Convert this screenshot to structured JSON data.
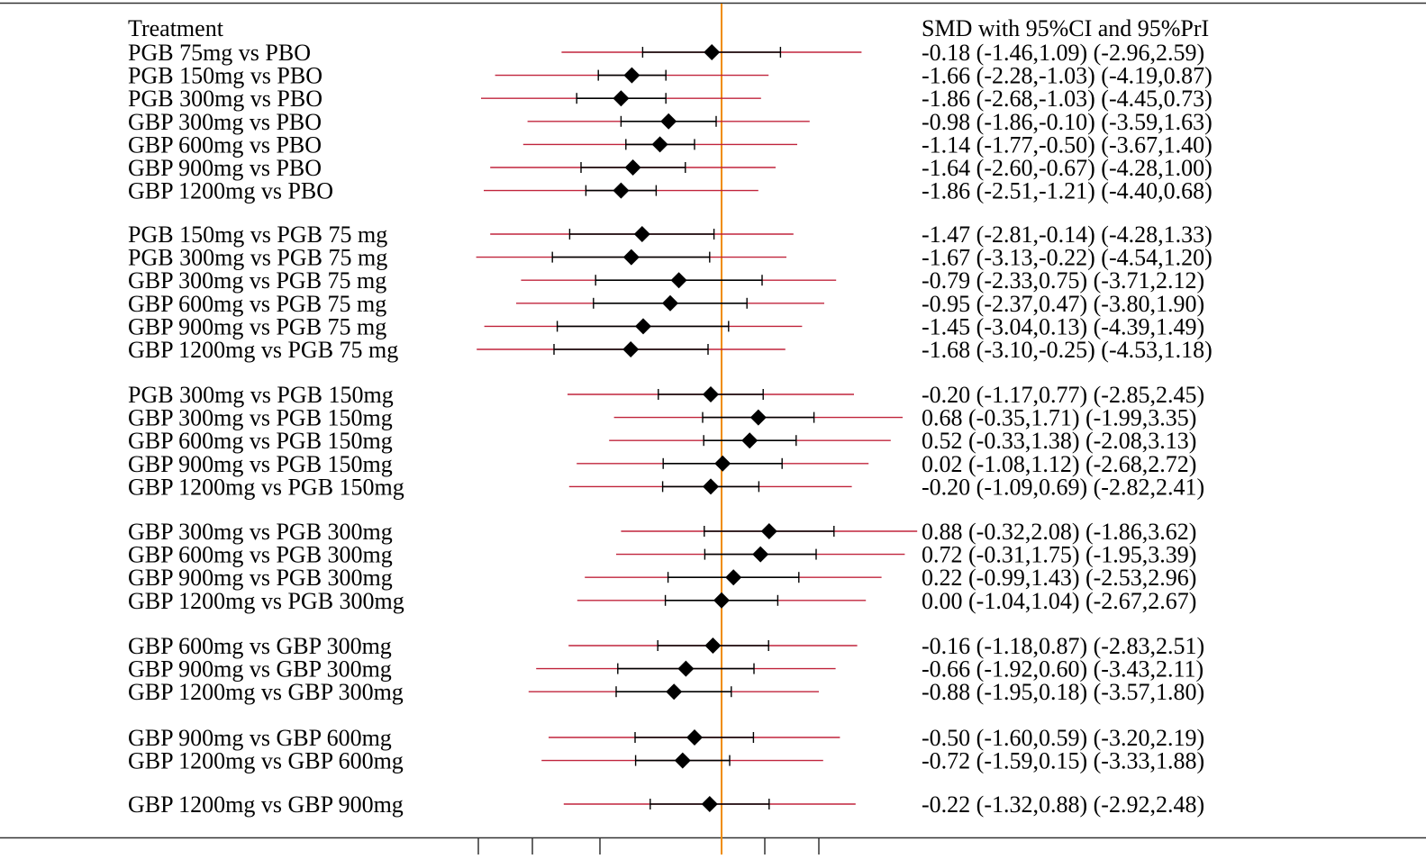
{
  "chart_data": {
    "type": "forest",
    "header_left": "Treatment",
    "header_right": "SMD  with 95%CI and 95%PrI",
    "reference_line": 0,
    "xlim": [
      -5,
      4
    ],
    "colors": {
      "pri_line": "#c0243c",
      "ci_line": "#000000",
      "marker": "#000000",
      "reference_line": "#f08c00",
      "frame": "#333333"
    },
    "groups": [
      {
        "rows": [
          {
            "label": "PGB 75mg vs PBO",
            "smd": -0.18,
            "ci": [
              -1.46,
              1.09
            ],
            "pri": [
              -2.96,
              2.59
            ],
            "text": "-0.18 (-1.46,1.09)  (-2.96,2.59)"
          },
          {
            "label": "PGB 150mg vs PBO",
            "smd": -1.66,
            "ci": [
              -2.28,
              -1.03
            ],
            "pri": [
              -4.19,
              0.87
            ],
            "text": "-1.66 (-2.28,-1.03)  (-4.19,0.87)"
          },
          {
            "label": "PGB 300mg vs PBO",
            "smd": -1.86,
            "ci": [
              -2.68,
              -1.03
            ],
            "pri": [
              -4.45,
              0.73
            ],
            "text": "-1.86 (-2.68,-1.03)  (-4.45,0.73)"
          },
          {
            "label": "GBP 300mg vs PBO",
            "smd": -0.98,
            "ci": [
              -1.86,
              -0.1
            ],
            "pri": [
              -3.59,
              1.63
            ],
            "text": "-0.98 (-1.86,-0.10)  (-3.59,1.63)"
          },
          {
            "label": "GBP 600mg vs PBO",
            "smd": -1.14,
            "ci": [
              -1.77,
              -0.5
            ],
            "pri": [
              -3.67,
              1.4
            ],
            "text": "-1.14 (-1.77,-0.50)  (-3.67,1.40)"
          },
          {
            "label": "GBP 900mg vs PBO",
            "smd": -1.64,
            "ci": [
              -2.6,
              -0.67
            ],
            "pri": [
              -4.28,
              1.0
            ],
            "text": "-1.64 (-2.60,-0.67)  (-4.28,1.00)"
          },
          {
            "label": "GBP 1200mg vs PBO",
            "smd": -1.86,
            "ci": [
              -2.51,
              -1.21
            ],
            "pri": [
              -4.4,
              0.68
            ],
            "text": "-1.86 (-2.51,-1.21)  (-4.40,0.68)"
          }
        ]
      },
      {
        "rows": [
          {
            "label": "PGB 150mg vs PGB 75 mg",
            "smd": -1.47,
            "ci": [
              -2.81,
              -0.14
            ],
            "pri": [
              -4.28,
              1.33
            ],
            "text": "-1.47 (-2.81,-0.14)  (-4.28,1.33)"
          },
          {
            "label": "PGB 300mg vs PGB 75 mg",
            "smd": -1.67,
            "ci": [
              -3.13,
              -0.22
            ],
            "pri": [
              -4.54,
              1.2
            ],
            "text": "-1.67 (-3.13,-0.22)  (-4.54,1.20)"
          },
          {
            "label": "GBP 300mg vs PGB 75 mg",
            "smd": -0.79,
            "ci": [
              -2.33,
              0.75
            ],
            "pri": [
              -3.71,
              2.12
            ],
            "text": "-0.79 (-2.33,0.75)  (-3.71,2.12)"
          },
          {
            "label": "GBP 600mg vs PGB 75 mg",
            "smd": -0.95,
            "ci": [
              -2.37,
              0.47
            ],
            "pri": [
              -3.8,
              1.9
            ],
            "text": "-0.95 (-2.37,0.47)  (-3.80,1.90)"
          },
          {
            "label": "GBP 900mg vs PGB 75 mg",
            "smd": -1.45,
            "ci": [
              -3.04,
              0.13
            ],
            "pri": [
              -4.39,
              1.49
            ],
            "text": "-1.45 (-3.04,0.13)  (-4.39,1.49)"
          },
          {
            "label": "GBP 1200mg vs PGB 75 mg",
            "smd": -1.68,
            "ci": [
              -3.1,
              -0.25
            ],
            "pri": [
              -4.53,
              1.18
            ],
            "text": "-1.68 (-3.10,-0.25)  (-4.53,1.18)"
          }
        ]
      },
      {
        "rows": [
          {
            "label": "PGB 300mg vs PGB 150mg",
            "smd": -0.2,
            "ci": [
              -1.17,
              0.77
            ],
            "pri": [
              -2.85,
              2.45
            ],
            "text": "-0.20 (-1.17,0.77)  (-2.85,2.45)"
          },
          {
            "label": "GBP 300mg vs PGB 150mg",
            "smd": 0.68,
            "ci": [
              -0.35,
              1.71
            ],
            "pri": [
              -1.99,
              3.35
            ],
            "text": "0.68 (-0.35,1.71)  (-1.99,3.35)"
          },
          {
            "label": "GBP 600mg vs PGB 150mg",
            "smd": 0.52,
            "ci": [
              -0.33,
              1.38
            ],
            "pri": [
              -2.08,
              3.13
            ],
            "text": "0.52 (-0.33,1.38)  (-2.08,3.13)"
          },
          {
            "label": "GBP 900mg vs PGB 150mg",
            "smd": 0.02,
            "ci": [
              -1.08,
              1.12
            ],
            "pri": [
              -2.68,
              2.72
            ],
            "text": "0.02 (-1.08,1.12)  (-2.68,2.72)"
          },
          {
            "label": "GBP 1200mg vs PGB 150mg",
            "smd": -0.2,
            "ci": [
              -1.09,
              0.69
            ],
            "pri": [
              -2.82,
              2.41
            ],
            "text": "-0.20 (-1.09,0.69)  (-2.82,2.41)"
          }
        ]
      },
      {
        "rows": [
          {
            "label": "GBP 300mg vs PGB 300mg",
            "smd": 0.88,
            "ci": [
              -0.32,
              2.08
            ],
            "pri": [
              -1.86,
              3.62
            ],
            "text": "0.88 (-0.32,2.08)  (-1.86,3.62)"
          },
          {
            "label": "GBP 600mg vs PGB 300mg",
            "smd": 0.72,
            "ci": [
              -0.31,
              1.75
            ],
            "pri": [
              -1.95,
              3.39
            ],
            "text": "0.72 (-0.31,1.75)  (-1.95,3.39)"
          },
          {
            "label": "GBP 900mg vs PGB 300mg",
            "smd": 0.22,
            "ci": [
              -0.99,
              1.43
            ],
            "pri": [
              -2.53,
              2.96
            ],
            "text": "0.22 (-0.99,1.43)  (-2.53,2.96)"
          },
          {
            "label": "GBP 1200mg vs PGB 300mg",
            "smd": 0.0,
            "ci": [
              -1.04,
              1.04
            ],
            "pri": [
              -2.67,
              2.67
            ],
            "text": "0.00 (-1.04,1.04)  (-2.67,2.67)"
          }
        ]
      },
      {
        "rows": [
          {
            "label": "GBP 600mg vs GBP 300mg",
            "smd": -0.16,
            "ci": [
              -1.18,
              0.87
            ],
            "pri": [
              -2.83,
              2.51
            ],
            "text": "-0.16 (-1.18,0.87)  (-2.83,2.51)"
          },
          {
            "label": "GBP 900mg vs GBP 300mg",
            "smd": -0.66,
            "ci": [
              -1.92,
              0.6
            ],
            "pri": [
              -3.43,
              2.11
            ],
            "text": "-0.66 (-1.92,0.60)  (-3.43,2.11)"
          },
          {
            "label": "GBP 1200mg vs GBP 300mg",
            "smd": -0.88,
            "ci": [
              -1.95,
              0.18
            ],
            "pri": [
              -3.57,
              1.8
            ],
            "text": "-0.88 (-1.95,0.18)  (-3.57,1.80)"
          }
        ]
      },
      {
        "rows": [
          {
            "label": "GBP 900mg vs GBP 600mg",
            "smd": -0.5,
            "ci": [
              -1.6,
              0.59
            ],
            "pri": [
              -3.2,
              2.19
            ],
            "text": "-0.50 (-1.60,0.59)  (-3.20,2.19)"
          },
          {
            "label": "GBP 1200mg vs GBP 600mg",
            "smd": -0.72,
            "ci": [
              -1.59,
              0.15
            ],
            "pri": [
              -3.33,
              1.88
            ],
            "text": "-0.72 (-1.59,0.15)  (-3.33,1.88)"
          }
        ]
      },
      {
        "rows": [
          {
            "label": "GBP 1200mg vs GBP 900mg",
            "smd": -0.22,
            "ci": [
              -1.32,
              0.88
            ],
            "pri": [
              -2.92,
              2.48
            ],
            "text": "-0.22 (-1.32,0.88)  (-2.92,2.48)"
          }
        ]
      }
    ],
    "x_axis_ticks": [
      -4.5,
      -3.5,
      -2.25,
      0,
      0.8,
      1.8
    ],
    "grid": false,
    "legend": "none"
  }
}
